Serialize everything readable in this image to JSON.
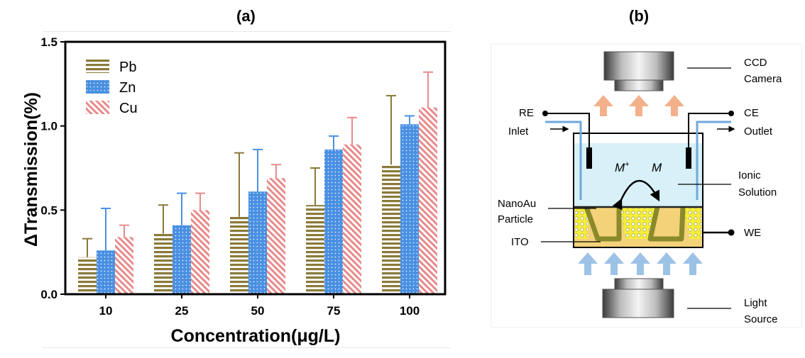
{
  "panels": {
    "a": "(a)",
    "b": "(b)"
  },
  "chart_data": {
    "type": "bar",
    "xlabel": "Concentration(μg/L)",
    "ylabel": "ΔTransmission(%)",
    "categories": [
      "10",
      "25",
      "50",
      "75",
      "100"
    ],
    "ylim": [
      0,
      1.5
    ],
    "yticks": [
      "0.0",
      "0.5",
      "1.0",
      "1.5"
    ],
    "legend_position": "top-left",
    "grid": false,
    "series": [
      {
        "name": "Pb",
        "values": [
          0.22,
          0.36,
          0.46,
          0.53,
          0.77
        ],
        "errors": [
          0.11,
          0.17,
          0.38,
          0.22,
          0.41
        ],
        "color": "#8a7a3a",
        "pattern": "horizontal-stripes"
      },
      {
        "name": "Zn",
        "values": [
          0.26,
          0.41,
          0.61,
          0.86,
          1.01
        ],
        "errors": [
          0.25,
          0.19,
          0.25,
          0.08,
          0.05
        ],
        "color": "#4a90e2",
        "pattern": "dots"
      },
      {
        "name": "Cu",
        "values": [
          0.34,
          0.5,
          0.69,
          0.89,
          1.11
        ],
        "errors": [
          0.07,
          0.1,
          0.08,
          0.16,
          0.21
        ],
        "color": "#e88a8a",
        "pattern": "diagonal-hatch"
      }
    ]
  },
  "diagram": {
    "labels": {
      "ccd": "CCD",
      "camera": "Camera",
      "re": "RE",
      "inlet": "Inlet",
      "ce": "CE",
      "outlet": "Outlet",
      "ionic": "Ionic",
      "solution": "Solution",
      "nanoau": "NanoAu",
      "particle": "Particle",
      "we": "WE",
      "ito": "ITO",
      "light": "Light",
      "source": "Source",
      "m_plus": "M",
      "m_plus_sup": "+",
      "m": "M"
    },
    "colors": {
      "solution": "#d8f0f8",
      "ito": "#f3d27a",
      "gold": "#f7ee3a",
      "frame": "#8a8a2a",
      "orange_arrow": "#f4b08a",
      "blue_arrow": "#9cc2e6"
    }
  }
}
